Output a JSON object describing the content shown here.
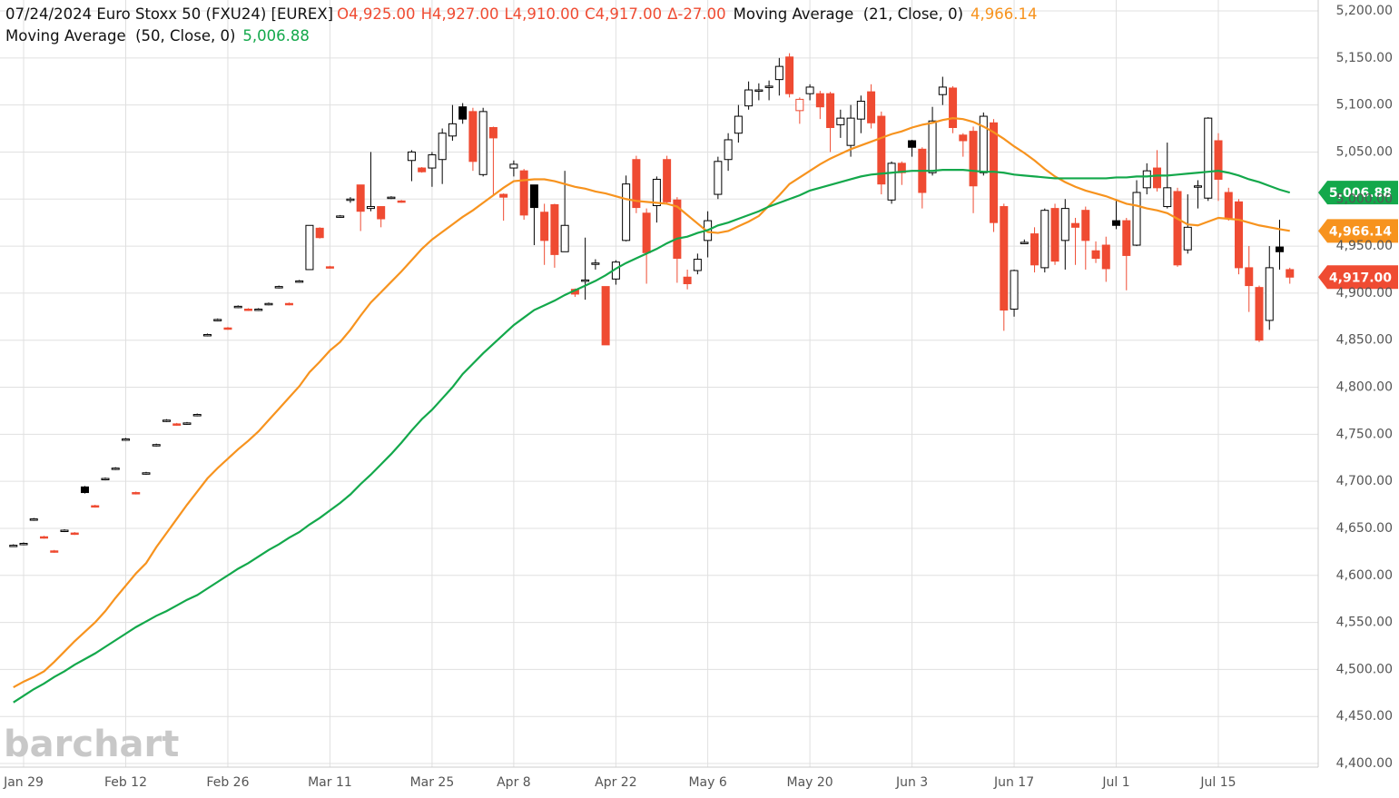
{
  "header": {
    "title": "07/24/2024 Euro Stoxx 50 (FXU24) [EUREX]",
    "ohlc": [
      "O4,925.00",
      "H4,927.00",
      "L4,910.00",
      "C4,917.00",
      "Δ-27.00"
    ]
  },
  "watermark": "barchart",
  "chart_data": {
    "type": "candlestick",
    "categories": [
      null,
      "Jan 29",
      null,
      null,
      null,
      null,
      null,
      null,
      null,
      null,
      null,
      "Feb 12",
      null,
      null,
      null,
      null,
      null,
      null,
      null,
      null,
      null,
      "Feb 26",
      null,
      null,
      null,
      null,
      null,
      null,
      null,
      null,
      null,
      "Mar 11",
      null,
      null,
      null,
      null,
      null,
      null,
      null,
      null,
      null,
      "Mar 25",
      null,
      null,
      null,
      null,
      null,
      null,
      null,
      "Apr 8",
      null,
      null,
      null,
      null,
      null,
      null,
      null,
      null,
      null,
      "Apr 22",
      null,
      null,
      null,
      null,
      null,
      null,
      null,
      null,
      "May 6",
      null,
      null,
      null,
      null,
      null,
      null,
      null,
      null,
      null,
      "May 20",
      null,
      null,
      null,
      null,
      null,
      null,
      null,
      null,
      null,
      "Jun 3",
      null,
      null,
      null,
      null,
      null,
      null,
      null,
      null,
      null,
      "Jun 17",
      null,
      null,
      null,
      null,
      null,
      null,
      null,
      null,
      null,
      "Jul 1",
      null,
      null,
      null,
      null,
      null,
      null,
      null,
      null,
      null,
      "Jul 15",
      null,
      null,
      null,
      null,
      null,
      null,
      null
    ],
    "open": [
      4632,
      4633,
      4659,
      4641,
      4626,
      4647,
      4645,
      4694,
      4674,
      4702,
      4713,
      4744,
      4688,
      4708,
      4738,
      4764,
      4761,
      4761,
      4770,
      4855,
      4871,
      4863,
      4885,
      4883,
      4882,
      4888,
      4906,
      4889,
      4912,
      4925,
      4969,
      4928,
      4981,
      4999,
      5015,
      4990,
      4992,
      5001,
      4998,
      5041,
      5033,
      5033,
      5042,
      5067,
      5098,
      5093,
      5026,
      5076,
      5005,
      5033,
      5030,
      5015,
      4986,
      4994,
      4944,
      4904,
      4913,
      4931,
      4907,
      4915,
      4956,
      5042,
      4985,
      4993,
      5042,
      4999,
      4917,
      4924,
      4956,
      5005,
      5042,
      5070,
      5099,
      5115,
      5119,
      5127,
      5151,
      5094,
      5112,
      5112,
      5112,
      5079,
      5057,
      5085,
      5114,
      5088,
      4999,
      5038,
      5062,
      5053,
      5028,
      5111,
      5118,
      5068,
      5072,
      5028,
      5081,
      4992,
      4883,
      4953,
      4963,
      4927,
      4990,
      4956,
      4974,
      4988,
      4945,
      4951,
      4977,
      4977,
      4951,
      5012,
      5033,
      4992,
      5008,
      4946,
      5013,
      5001,
      5062,
      5007,
      4997,
      4927,
      4906,
      4871,
      4949,
      4925
    ],
    "high": [
      4633,
      4635,
      4661,
      4642,
      4627,
      4649,
      4646,
      4695,
      4675,
      4704,
      4715,
      4746,
      4689,
      4710,
      4740,
      4766,
      4762,
      4763,
      4772,
      4857,
      4873,
      4864,
      4887,
      4884,
      4884,
      4890,
      4908,
      4890,
      4914,
      4972,
      4970,
      4929,
      4983,
      5002,
      5015,
      5050,
      4992,
      5003,
      4999,
      5052,
      5034,
      5050,
      5075,
      5100,
      5102,
      5097,
      5097,
      5077,
      5006,
      5041,
      5032,
      5015,
      4995,
      4995,
      5030,
      4905,
      4959,
      4936,
      4907,
      4935,
      5025,
      5046,
      4990,
      5024,
      5046,
      5002,
      4925,
      4942,
      4987,
      5045,
      5070,
      5100,
      5125,
      5123,
      5126,
      5150,
      5155,
      5108,
      5122,
      5115,
      5114,
      5095,
      5100,
      5110,
      5122,
      5093,
      5040,
      5040,
      5063,
      5055,
      5098,
      5130,
      5120,
      5070,
      5077,
      5092,
      5085,
      4995,
      4925,
      4957,
      4970,
      4990,
      4995,
      5000,
      4980,
      4992,
      4955,
      4960,
      5000,
      4980,
      5020,
      5038,
      5052,
      5060,
      5012,
      5005,
      5020,
      5087,
      5070,
      5012,
      5000,
      4950,
      4908,
      4950,
      4978,
      4927
    ],
    "low": [
      4631,
      4632,
      4658,
      4639,
      4624,
      4646,
      4643,
      4687,
      4672,
      4701,
      4712,
      4743,
      4686,
      4707,
      4737,
      4763,
      4759,
      4760,
      4769,
      4854,
      4870,
      4861,
      4884,
      4881,
      4881,
      4887,
      4905,
      4887,
      4911,
      4925,
      4958,
      4926,
      4980,
      4996,
      4966,
      4987,
      4970,
      5000,
      4996,
      5019,
      5028,
      5013,
      5016,
      5062,
      5080,
      5030,
      5024,
      5004,
      4977,
      5024,
      4978,
      4951,
      4930,
      4927,
      4944,
      4896,
      4893,
      4925,
      4845,
      4909,
      4955,
      4985,
      4910,
      4975,
      4995,
      4911,
      4904,
      4920,
      4938,
      5000,
      5030,
      5060,
      5095,
      5105,
      5105,
      5110,
      5108,
      5080,
      5105,
      5085,
      5050,
      5065,
      5045,
      5070,
      5075,
      5005,
      4995,
      5015,
      5045,
      4990,
      5025,
      5100,
      5070,
      5045,
      4985,
      5025,
      4965,
      4860,
      4875,
      4952,
      4922,
      4922,
      4930,
      4925,
      4930,
      4925,
      4932,
      4912,
      4968,
      4903,
      4950,
      5005,
      5008,
      4990,
      4928,
      4942,
      4990,
      4998,
      4998,
      4977,
      4920,
      4880,
      4848,
      4861,
      4925,
      4910
    ],
    "close": [
      4632,
      4634,
      4660,
      4640,
      4625,
      4648,
      4644,
      4688,
      4673,
      4703,
      4714,
      4745,
      4687,
      4709,
      4739,
      4765,
      4760,
      4762,
      4771,
      4856,
      4872,
      4862,
      4886,
      4882,
      4883,
      4889,
      4907,
      4888,
      4913,
      4972,
      4959,
      4927,
      4982,
      5000,
      4987,
      4992,
      4979,
      5002,
      4997,
      5050,
      5029,
      5047,
      5070,
      5080,
      5085,
      5040,
      5093,
      5065,
      5002,
      5037,
      4983,
      4991,
      4956,
      4941,
      4972,
      4899,
      4914,
      4932,
      4845,
      4933,
      5016,
      4991,
      4943,
      5021,
      4997,
      4937,
      4910,
      4936,
      4977,
      5040,
      5063,
      5088,
      5116,
      5116,
      5120,
      5141,
      5112,
      5106,
      5119,
      5098,
      5076,
      5086,
      5086,
      5104,
      5081,
      5016,
      5038,
      5028,
      5055,
      5007,
      5083,
      5119,
      5076,
      5062,
      5014,
      5088,
      4975,
      4882,
      4924,
      4954,
      4930,
      4988,
      4934,
      4990,
      4970,
      4956,
      4937,
      4926,
      4972,
      4940,
      5007,
      5030,
      5012,
      5012,
      4930,
      4970,
      5014,
      5086,
      5021,
      4980,
      4927,
      4908,
      4850,
      4927,
      4944,
      4917
    ],
    "last_close_label": "4,917.00",
    "up_color": "#000000",
    "down_color": "#ef4b32",
    "series": [
      {
        "name": "Moving Average  (21, Close, 0)",
        "color": "#f7931e",
        "value_label": "4,966.14",
        "values": [
          4481,
          4487,
          4492,
          4498,
          4508,
          4519,
          4530,
          4540,
          4550,
          4562,
          4576,
          4589,
          4602,
          4613,
          4630,
          4645,
          4660,
          4675,
          4689,
          4703,
          4714,
          4724,
          4734,
          4743,
          4753,
          4765,
          4777,
          4789,
          4801,
          4816,
          4827,
          4839,
          4848,
          4861,
          4876,
          4890,
          4901,
          4912,
          4923,
          4935,
          4947,
          4957,
          4965,
          4973,
          4981,
          4988,
          4996,
          5004,
          5012,
          5019,
          5020,
          5021,
          5021,
          5019,
          5016,
          5013,
          5011,
          5008,
          5006,
          5003,
          5000,
          4998,
          4997,
          4996,
          4995,
          4992,
          4983,
          4974,
          4965,
          4964,
          4966,
          4971,
          4976,
          4982,
          4993,
          5004,
          5016,
          5023,
          5030,
          5037,
          5043,
          5048,
          5053,
          5057,
          5061,
          5065,
          5069,
          5072,
          5076,
          5079,
          5081,
          5084,
          5086,
          5085,
          5082,
          5077,
          5071,
          5064,
          5056,
          5049,
          5041,
          5032,
          5024,
          5018,
          5013,
          5009,
          5006,
          5003,
          4999,
          4995,
          4993,
          4990,
          4988,
          4985,
          4979,
          4973,
          4972,
          4976,
          4980,
          4979,
          4978,
          4975,
          4972,
          4970,
          4968,
          4966.14
        ]
      },
      {
        "name": "Moving Average  (50, Close, 0)",
        "color": "#13a84b",
        "value_label": "5,006.88",
        "values": [
          4465,
          4472,
          4479,
          4485,
          4492,
          4498,
          4505,
          4511,
          4517,
          4524,
          4531,
          4538,
          4545,
          4551,
          4557,
          4562,
          4568,
          4574,
          4579,
          4586,
          4593,
          4600,
          4607,
          4613,
          4620,
          4627,
          4633,
          4640,
          4646,
          4654,
          4661,
          4669,
          4677,
          4686,
          4697,
          4707,
          4718,
          4729,
          4741,
          4754,
          4766,
          4776,
          4788,
          4800,
          4814,
          4825,
          4836,
          4846,
          4856,
          4866,
          4874,
          4882,
          4887,
          4892,
          4898,
          4903,
          4908,
          4913,
          4919,
          4926,
          4932,
          4937,
          4942,
          4947,
          4953,
          4958,
          4960,
          4964,
          4967,
          4972,
          4975,
          4979,
          4983,
          4987,
          4992,
          4996,
          5000,
          5004,
          5009,
          5012,
          5015,
          5018,
          5021,
          5024,
          5026,
          5027,
          5028,
          5029,
          5030,
          5030,
          5030,
          5031,
          5031,
          5031,
          5030,
          5029,
          5029,
          5028,
          5026,
          5025,
          5024,
          5023,
          5022,
          5022,
          5022,
          5022,
          5022,
          5022,
          5023,
          5023,
          5024,
          5024,
          5025,
          5025,
          5026,
          5027,
          5028,
          5029,
          5030,
          5028,
          5025,
          5021,
          5018,
          5014,
          5010,
          5006.88
        ]
      }
    ],
    "ylim": [
      4400,
      5200
    ],
    "yticks": [
      {
        "value": 4400,
        "label": "4,400.00"
      },
      {
        "value": 4450,
        "label": "4,450.00"
      },
      {
        "value": 4500,
        "label": "4,500.00"
      },
      {
        "value": 4550,
        "label": "4,550.00"
      },
      {
        "value": 4600,
        "label": "4,600.00"
      },
      {
        "value": 4650,
        "label": "4,650.00"
      },
      {
        "value": 4700,
        "label": "4,700.00"
      },
      {
        "value": 4750,
        "label": "4,750.00"
      },
      {
        "value": 4800,
        "label": "4,800.00"
      },
      {
        "value": 4850,
        "label": "4,850.00"
      },
      {
        "value": 4900,
        "label": "4,900.00"
      },
      {
        "value": 4950,
        "label": "4,950.00"
      },
      {
        "value": 5000,
        "label": "5,000.00"
      },
      {
        "value": 5050,
        "label": "5,050.00"
      },
      {
        "value": 5100,
        "label": "5,100.00"
      },
      {
        "value": 5150,
        "label": "5,150.00"
      },
      {
        "value": 5200,
        "label": "5,200.00"
      }
    ],
    "grid": true
  }
}
